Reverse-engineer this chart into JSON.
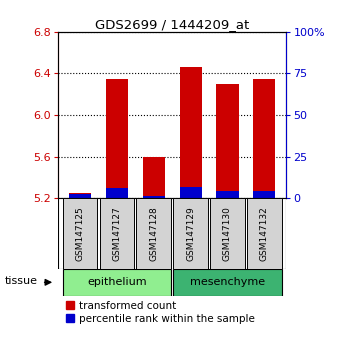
{
  "title": "GDS2699 / 1444209_at",
  "samples": [
    "GSM147125",
    "GSM147127",
    "GSM147128",
    "GSM147129",
    "GSM147130",
    "GSM147132"
  ],
  "red_top": [
    5.255,
    6.35,
    5.6,
    6.46,
    6.3,
    6.35
  ],
  "blue_top": [
    5.245,
    5.295,
    5.225,
    5.305,
    5.265,
    5.27
  ],
  "baseline": 5.2,
  "ylim_left": [
    5.2,
    6.8
  ],
  "ylim_right": [
    0,
    100
  ],
  "yticks_left": [
    5.2,
    5.6,
    6.0,
    6.4,
    6.8
  ],
  "yticks_right": [
    0,
    25,
    50,
    75,
    100
  ],
  "ytick_labels_right": [
    "0",
    "25",
    "50",
    "75",
    "100%"
  ],
  "groups": [
    {
      "label": "epithelium",
      "indices": [
        0,
        1,
        2
      ],
      "color": "#90EE90"
    },
    {
      "label": "mesenchyme",
      "indices": [
        3,
        4,
        5
      ],
      "color": "#3CB371"
    }
  ],
  "bar_width": 0.6,
  "red_color": "#CC0000",
  "blue_color": "#0000CC",
  "left_tick_color": "#CC0000",
  "right_tick_color": "#0000CC",
  "bg_color": "#FFFFFF",
  "sample_box_color": "#D3D3D3",
  "legend_red": "transformed count",
  "legend_blue": "percentile rank within the sample",
  "tissue_label": "tissue"
}
